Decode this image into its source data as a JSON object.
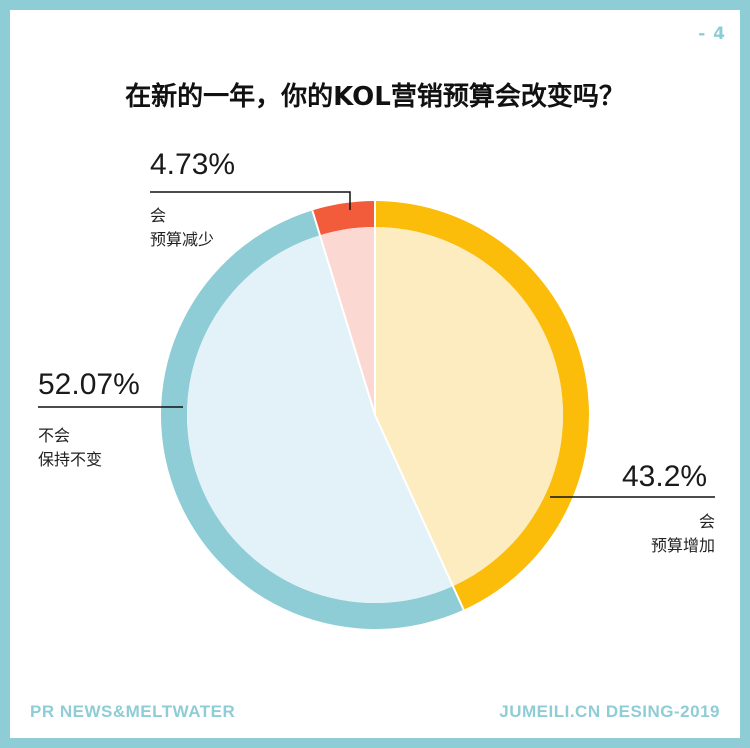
{
  "page_number": "- 4",
  "chart_data": {
    "type": "pie",
    "title": "在新的一年，你的KOL营销预算会改变吗？",
    "slices": [
      {
        "label_line1": "会",
        "label_line2": "预算增加",
        "percent_label": "43.2%",
        "value": 43.2,
        "ring_color": "#fbbd09",
        "fill_color": "#fdecc0"
      },
      {
        "label_line1": "不会",
        "label_line2": "保持不变",
        "percent_label": "52.07%",
        "value": 52.07,
        "ring_color": "#8fcdd6",
        "fill_color": "#e2f2f8"
      },
      {
        "label_line1": "会",
        "label_line2": "预算减少",
        "percent_label": "4.73%",
        "value": 4.73,
        "ring_color": "#f25c3b",
        "fill_color": "#fcd8d3"
      }
    ]
  },
  "footer": {
    "source": "PR NEWS&MELTWATER",
    "credit": "JUMEILI.CN DESING-2019"
  }
}
